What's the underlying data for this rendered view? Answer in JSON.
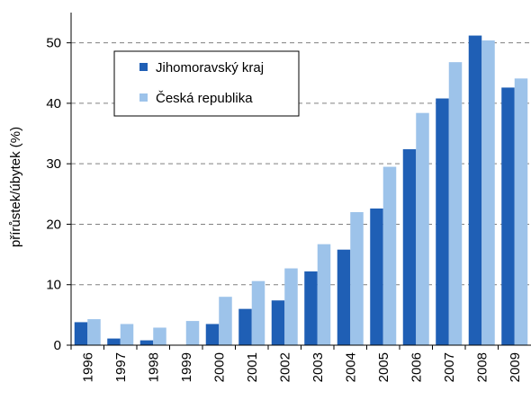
{
  "chart_data": {
    "type": "bar",
    "ylabel": "přírůstek/úbytek (%)",
    "categories": [
      "1996",
      "1997",
      "1998",
      "1999",
      "2000",
      "2001",
      "2002",
      "2003",
      "2004",
      "2005",
      "2006",
      "2007",
      "2008",
      "2009"
    ],
    "ylim": [
      0,
      55
    ],
    "yticks": [
      0,
      10,
      20,
      30,
      40,
      50
    ],
    "grid": true,
    "legend_position": "top-left",
    "series": [
      {
        "name": "Jihomoravský kraj",
        "color": "#1f5fb5",
        "values": [
          3.8,
          1.1,
          0.8,
          0.0,
          3.5,
          6.0,
          7.4,
          12.2,
          15.8,
          22.6,
          32.4,
          40.8,
          51.2,
          42.6
        ]
      },
      {
        "name": "Česká republika",
        "color": "#9dc3ea",
        "values": [
          4.3,
          3.5,
          2.9,
          4.0,
          8.0,
          10.6,
          12.7,
          16.7,
          22.0,
          29.5,
          38.4,
          46.8,
          50.4,
          44.1
        ]
      }
    ]
  }
}
